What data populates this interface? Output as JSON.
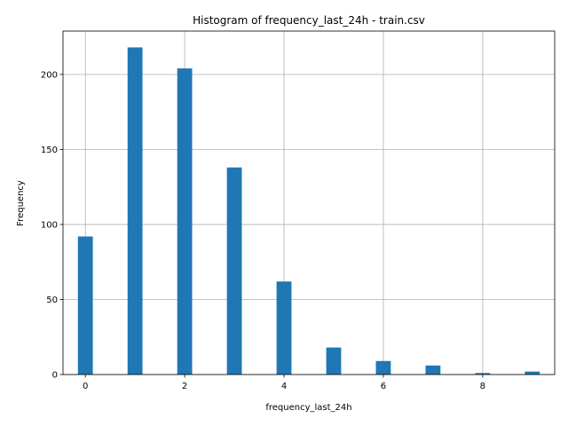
{
  "chart_data": {
    "type": "bar",
    "title": "Histogram of frequency_last_24h - train.csv",
    "xlabel": "frequency_last_24h",
    "ylabel": "Frequency",
    "xlim": [
      -0.45,
      9.45
    ],
    "ylim": [
      0,
      228.9
    ],
    "grid": true,
    "bin_width": 0.3,
    "bins": [
      {
        "x": 0,
        "count": 92
      },
      {
        "x": 1,
        "count": 218
      },
      {
        "x": 2,
        "count": 204
      },
      {
        "x": 3,
        "count": 138
      },
      {
        "x": 4,
        "count": 62
      },
      {
        "x": 5,
        "count": 18
      },
      {
        "x": 6,
        "count": 9
      },
      {
        "x": 7,
        "count": 6
      },
      {
        "x": 8,
        "count": 1
      },
      {
        "x": 9,
        "count": 2
      }
    ],
    "xticks": [
      0,
      2,
      4,
      6,
      8
    ],
    "yticks": [
      0,
      50,
      100,
      150,
      200
    ],
    "colors": {
      "bar": "#1f77b4"
    }
  }
}
